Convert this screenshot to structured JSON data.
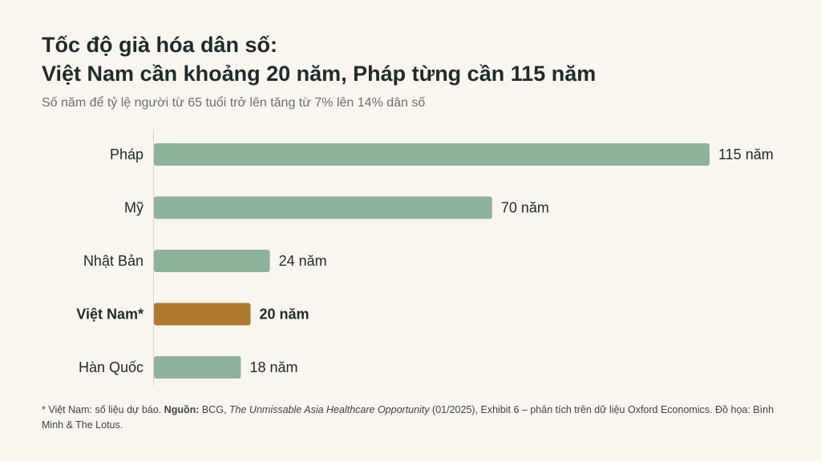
{
  "header": {
    "title_line1": "Tốc độ già hóa dân số:",
    "title_line2": "Việt Nam cần khoảng 20 năm, Pháp từng cần 115 năm",
    "subtitle": "Số năm để tỷ lệ người từ 65 tuổi trở lên tăng từ 7% lên 14% dân số"
  },
  "colors": {
    "default_bar": "#8db39a",
    "highlight_bar": "#b07a2e",
    "axis": "#d8d4cc"
  },
  "chart_data": {
    "type": "bar",
    "orientation": "horizontal",
    "categories": [
      "Pháp",
      "Mỹ",
      "Nhật Bản",
      "Việt Nam*",
      "Hàn Quốc"
    ],
    "values": [
      115,
      70,
      24,
      20,
      18
    ],
    "value_labels": [
      "115 năm",
      "70 năm",
      "24 năm",
      "20 năm",
      "18 năm"
    ],
    "highlight": "Việt Nam*",
    "xlim": [
      0,
      115
    ],
    "grid": false
  },
  "footnote": {
    "part1": "* Việt Nam: số liệu dự báo. ",
    "source_label": "Nguồn:",
    "part2": " BCG, ",
    "report_title": "The Unmissable Asia Healthcare Opportunity",
    "part3": " (01/2025), Exhibit 6 – phân tích trên dữ liệu Oxford Economics. Đồ họa: Bình Minh & The Lotus."
  }
}
